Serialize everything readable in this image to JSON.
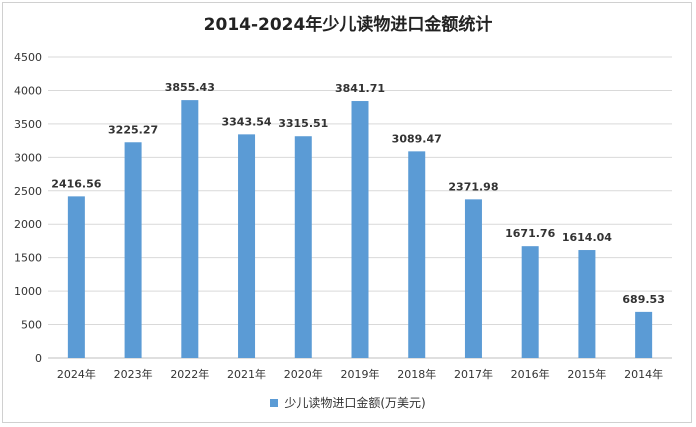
{
  "chart_data": {
    "type": "bar",
    "title": "2014-2024年少儿读物进口金额统计",
    "categories": [
      "2024年",
      "2023年",
      "2022年",
      "2021年",
      "2020年",
      "2019年",
      "2018年",
      "2017年",
      "2016年",
      "2015年",
      "2014年"
    ],
    "series": [
      {
        "name": "少儿读物进口金额(万美元)",
        "values": [
          2416.56,
          3225.27,
          3855.43,
          3343.54,
          3315.51,
          3841.71,
          3089.47,
          2371.98,
          1671.76,
          1614.04,
          689.53
        ],
        "labels": [
          "2416.56",
          "3225.27",
          "3855.43",
          "3343.54",
          "3315.51",
          "3841.71",
          "3089.47",
          "2371.98",
          "1671.76",
          "1614.04",
          "689.53"
        ]
      }
    ],
    "ylim": [
      0,
      4500
    ],
    "yticks": [
      0,
      500,
      1000,
      1500,
      2000,
      2500,
      3000,
      3500,
      4000,
      4500
    ],
    "grid": true,
    "legend_position": "bottom",
    "colors": {
      "bar": "#5b9bd5",
      "grid": "#d9d9d9",
      "axis": "#bfbfbf"
    }
  }
}
